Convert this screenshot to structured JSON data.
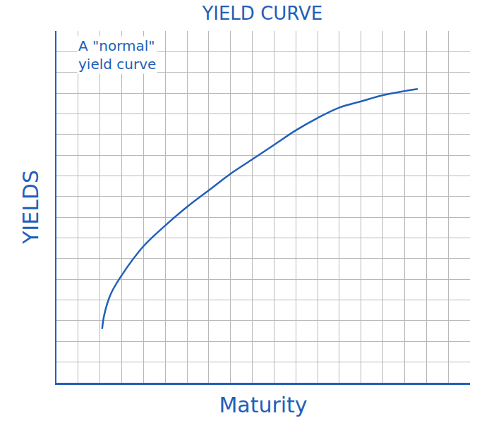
{
  "chart_data": {
    "type": "line",
    "title": "YIELD CURVE",
    "x_label": "Maturity",
    "y_label": "YIELDS",
    "annotation": "A \"normal\" yield curve",
    "x": [
      2.1,
      2.2,
      2.5,
      3,
      4,
      5,
      6,
      7,
      8,
      9,
      10,
      11,
      12,
      13,
      14,
      15,
      16,
      16.6
    ],
    "values": [
      2.6,
      3.3,
      4.3,
      5.2,
      6.6,
      7.6,
      8.5,
      9.3,
      10.1,
      10.8,
      11.5,
      12.2,
      12.8,
      13.3,
      13.6,
      13.9,
      14.1,
      14.2
    ],
    "color": "#2160b8",
    "xlim": [
      0,
      19
    ],
    "ylim": [
      0,
      17
    ],
    "xticks": [
      0,
      1,
      2,
      3,
      4,
      5,
      6,
      7,
      8,
      9,
      10,
      11,
      12,
      13,
      14,
      15,
      16,
      17,
      18,
      19
    ],
    "yticks": [
      0,
      1,
      2,
      3,
      4,
      5,
      6,
      7,
      8,
      9,
      10,
      11,
      12,
      13,
      14,
      15,
      16,
      17
    ],
    "grid": true,
    "tick_labels": false,
    "line_style": "solid"
  }
}
